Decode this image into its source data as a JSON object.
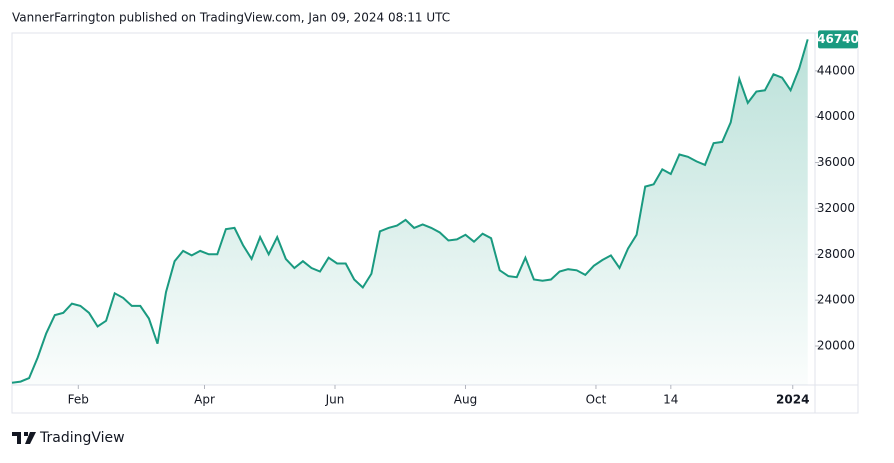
{
  "header": "VannerFarrington published on TradingView.com, Jan 09, 2024 08:11 UTC",
  "footer": "TradingView",
  "chart_data": {
    "type": "area",
    "color": "#1a9a80",
    "values": [
      16800,
      16900,
      17200,
      19000,
      21100,
      22700,
      22900,
      23700,
      23500,
      22900,
      21700,
      22200,
      24600,
      24200,
      23500,
      23500,
      22400,
      20200,
      24700,
      27400,
      28300,
      27900,
      28300,
      28000,
      28000,
      30200,
      30300,
      28800,
      27600,
      29500,
      28000,
      29500,
      27600,
      26800,
      27400,
      26800,
      26500,
      27700,
      27200,
      27200,
      25800,
      25100,
      26300,
      30000,
      30300,
      30500,
      31000,
      30300,
      30600,
      30300,
      29900,
      29200,
      29300,
      29700,
      29100,
      29800,
      29400,
      26600,
      26100,
      26000,
      27700,
      25800,
      25700,
      25800,
      26500,
      26700,
      26600,
      26200,
      27000,
      27500,
      27900,
      26800,
      28500,
      29700,
      33900,
      34100,
      35400,
      35000,
      36700,
      36500,
      36100,
      35800,
      37700,
      37800,
      39500,
      43300,
      41200,
      42200,
      42300,
      43700,
      43400,
      42300,
      44200,
      46740
    ],
    "xlim": [
      0,
      93.5
    ],
    "xticks": [
      {
        "value": 7.75,
        "label": "Feb"
      },
      {
        "value": 22.5,
        "label": "Apr"
      },
      {
        "value": 37.75,
        "label": "Jun"
      },
      {
        "value": 53,
        "label": "Aug"
      },
      {
        "value": 68.25,
        "label": "Oct"
      },
      {
        "value": 77,
        "label": "14"
      },
      {
        "value": 91.25,
        "label": "2024"
      }
    ],
    "ylim": [
      16600,
      47300
    ],
    "yticks": [
      20000,
      24000,
      28000,
      32000,
      36000,
      40000,
      44000
    ]
  }
}
